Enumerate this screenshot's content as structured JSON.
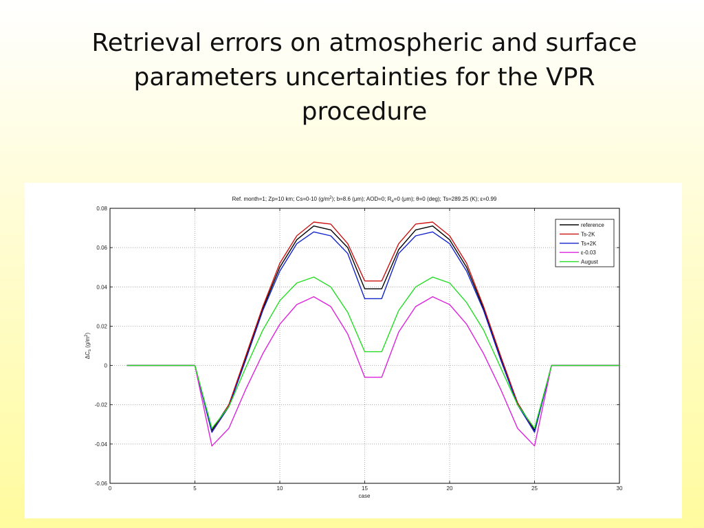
{
  "slide": {
    "title_line1": "Retrieval errors on atmospheric and surface",
    "title_line2": "parameters uncertainties for the VPR",
    "title_line3": "procedure"
  },
  "chart_data": {
    "type": "line",
    "title_parts": {
      "a": "Ref. month=1; Zp=10 km; Cs=0-10 (g/m",
      "a_sup": "2",
      "b": "); b=8.6 (μm); AOD=0; R",
      "b_sub": "e",
      "c": "=0 (μm); θ=0 (deg); Ts=289.25 (K); ε=0.99"
    },
    "xlabel": "case",
    "ylabel_parts": {
      "a": "ΔC",
      "sub": "s",
      "b": " (g/m",
      "sup": "2",
      "c": ")"
    },
    "xlim": [
      0,
      30
    ],
    "ylim": [
      -0.06,
      0.08
    ],
    "xticks": [
      0,
      5,
      10,
      15,
      20,
      25,
      30
    ],
    "xtick_labels": [
      "0",
      "5",
      "10",
      "15",
      "20",
      "25",
      "30"
    ],
    "yticks": [
      -0.06,
      -0.04,
      -0.02,
      0,
      0.02,
      0.04,
      0.06,
      0.08
    ],
    "ytick_labels": [
      "-0.06",
      "-0.04",
      "-0.02",
      "0",
      "0.02",
      "0.04",
      "0.06",
      "0.08"
    ],
    "grid": true,
    "legend_position": "top-right",
    "x": [
      1,
      2,
      3,
      4,
      5,
      6,
      7,
      8,
      9,
      10,
      11,
      12,
      13,
      14,
      15,
      16,
      17,
      18,
      19,
      20,
      21,
      22,
      23,
      24,
      25,
      26,
      27,
      28,
      29,
      30
    ],
    "series": [
      {
        "name": "reference",
        "color": "#000000",
        "values": [
          0,
          0,
          0,
          0,
          0,
          -0.033,
          -0.02,
          0.004,
          0.029,
          0.05,
          0.064,
          0.071,
          0.069,
          0.06,
          0.039,
          0.039,
          0.059,
          0.069,
          0.071,
          0.064,
          0.05,
          0.029,
          0.004,
          -0.019,
          -0.033,
          0,
          0,
          0,
          0,
          0
        ]
      },
      {
        "name": "Ts-2K",
        "color": "#cc1111",
        "values": [
          0,
          0,
          0,
          0,
          0,
          -0.034,
          -0.02,
          0.005,
          0.03,
          0.052,
          0.066,
          0.073,
          0.072,
          0.062,
          0.043,
          0.043,
          0.062,
          0.072,
          0.073,
          0.066,
          0.052,
          0.03,
          0.005,
          -0.019,
          -0.034,
          0,
          0,
          0,
          0,
          0
        ]
      },
      {
        "name": "Ts+2K",
        "color": "#1122cc",
        "values": [
          0,
          0,
          0,
          0,
          0,
          -0.034,
          -0.021,
          0.003,
          0.028,
          0.048,
          0.062,
          0.068,
          0.066,
          0.057,
          0.034,
          0.034,
          0.057,
          0.066,
          0.068,
          0.062,
          0.048,
          0.028,
          0.003,
          -0.02,
          -0.034,
          0,
          0,
          0,
          0,
          0
        ]
      },
      {
        "name": "ε-0.03",
        "color": "#dd22dd",
        "values": [
          0,
          0,
          0,
          0,
          0,
          -0.041,
          -0.032,
          -0.012,
          0.006,
          0.021,
          0.031,
          0.035,
          0.03,
          0.016,
          -0.006,
          -0.006,
          0.017,
          0.03,
          0.035,
          0.031,
          0.021,
          0.006,
          -0.012,
          -0.032,
          -0.041,
          0,
          0,
          0,
          0,
          0
        ]
      },
      {
        "name": "August",
        "color": "#22dd22",
        "values": [
          0,
          0,
          0,
          0,
          0,
          -0.032,
          -0.021,
          -0.001,
          0.018,
          0.033,
          0.042,
          0.045,
          0.04,
          0.027,
          0.007,
          0.007,
          0.028,
          0.04,
          0.045,
          0.042,
          0.032,
          0.018,
          -0.001,
          -0.02,
          -0.032,
          0,
          0,
          0,
          0,
          0
        ]
      }
    ]
  }
}
